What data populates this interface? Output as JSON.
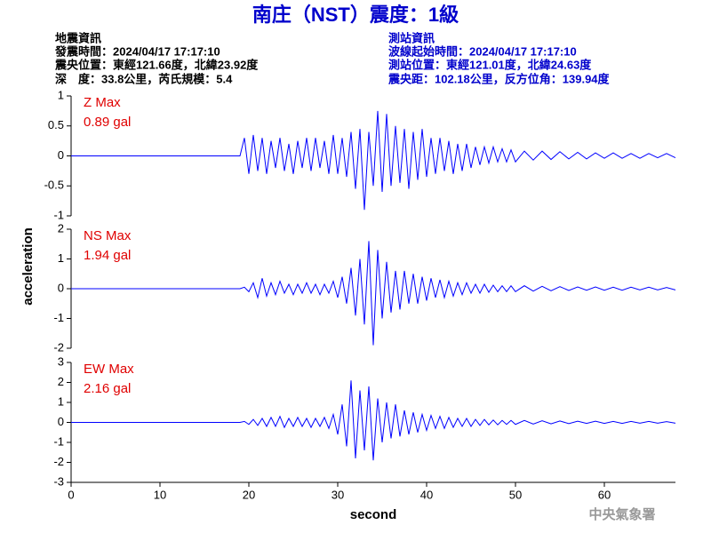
{
  "header": {
    "title": "南庄（NST）震度：1級",
    "left": [
      "地震資訊",
      "發震時間：2024/04/17 17:17:10",
      "震央位置：東經121.66度，北緯23.92度",
      "深　度：33.8公里，芮氏規模：5.4"
    ],
    "right": [
      "測站資訊",
      "波線起始時間：2024/04/17 17:17:10",
      "測站位置：東經121.01度，北緯24.63度",
      "震央距：102.18公里，反方位角：139.94度"
    ]
  },
  "footer": "中央氣象署",
  "chart_data": {
    "type": "line",
    "x_label": "second",
    "y_label": "acceleration",
    "xlim": [
      0,
      68
    ],
    "xticks": [
      0,
      10,
      20,
      30,
      40,
      50,
      60
    ],
    "x": [
      0,
      19,
      19.5,
      20,
      20.5,
      21,
      21.5,
      22,
      22.5,
      23,
      23.5,
      24,
      24.5,
      25,
      25.5,
      26,
      26.5,
      27,
      27.5,
      28,
      28.5,
      29,
      29.5,
      30,
      30.5,
      31,
      31.5,
      32,
      32.5,
      33,
      33.5,
      34,
      34.5,
      35,
      35.5,
      36,
      36.5,
      37,
      37.5,
      38,
      38.5,
      39,
      39.5,
      40,
      40.5,
      41,
      41.5,
      42,
      42.5,
      43,
      43.5,
      44,
      44.5,
      45,
      45.5,
      46,
      46.5,
      47,
      47.5,
      48,
      48.5,
      49,
      49.5,
      50,
      51,
      52,
      53,
      54,
      55,
      56,
      57,
      58,
      59,
      60,
      61,
      62,
      63,
      64,
      65,
      66,
      67,
      68
    ],
    "series": [
      {
        "name": "Z Max",
        "max_label": "0.89 gal",
        "color": "#0000ff",
        "ylim": [
          -1,
          1
        ],
        "yticks": [
          -1,
          -0.5,
          0,
          0.5,
          1
        ],
        "values": [
          0,
          0,
          0.3,
          -0.3,
          0.35,
          -0.25,
          0.3,
          -0.3,
          0.25,
          -0.2,
          0.3,
          -0.25,
          0.2,
          -0.3,
          0.25,
          -0.2,
          0.3,
          -0.25,
          0.3,
          -0.2,
          0.25,
          -0.3,
          0.35,
          -0.3,
          0.3,
          -0.35,
          0.4,
          -0.55,
          0.45,
          -0.9,
          0.4,
          -0.5,
          0.75,
          -0.6,
          0.7,
          -0.5,
          0.5,
          -0.45,
          0.45,
          -0.55,
          0.4,
          -0.4,
          0.45,
          -0.35,
          0.3,
          -0.3,
          0.3,
          -0.25,
          0.25,
          -0.3,
          0.2,
          -0.25,
          0.2,
          -0.2,
          0.15,
          -0.15,
          0.15,
          -0.12,
          0.15,
          -0.1,
          0.12,
          -0.1,
          0.1,
          -0.1,
          0.08,
          -0.07,
          0.08,
          -0.06,
          0.07,
          -0.05,
          0.06,
          -0.05,
          0.05,
          -0.04,
          0.05,
          -0.04,
          0.04,
          -0.04,
          0.04,
          -0.03,
          0.04,
          -0.03
        ]
      },
      {
        "name": "NS Max",
        "max_label": "1.94 gal",
        "color": "#0000ff",
        "ylim": [
          -2,
          2
        ],
        "yticks": [
          -2,
          -1,
          0,
          1,
          2
        ],
        "values": [
          0,
          0,
          0.05,
          -0.1,
          0.2,
          -0.3,
          0.35,
          -0.25,
          0.2,
          -0.2,
          0.25,
          -0.15,
          0.15,
          -0.2,
          0.15,
          -0.15,
          0.2,
          -0.15,
          0.15,
          -0.2,
          0.15,
          -0.15,
          0.25,
          -0.3,
          0.4,
          -0.5,
          0.7,
          -0.9,
          1.0,
          -1.2,
          1.6,
          -1.9,
          1.3,
          -1.0,
          0.9,
          -0.8,
          0.6,
          -0.7,
          0.6,
          -0.5,
          0.5,
          -0.5,
          0.4,
          -0.4,
          0.35,
          -0.3,
          0.3,
          -0.3,
          0.25,
          -0.25,
          0.2,
          -0.2,
          0.2,
          -0.15,
          0.15,
          -0.15,
          0.15,
          -0.12,
          0.12,
          -0.1,
          0.1,
          -0.1,
          0.1,
          -0.1,
          0.1,
          -0.08,
          0.08,
          -0.07,
          0.07,
          -0.06,
          0.06,
          -0.05,
          0.06,
          -0.05,
          0.05,
          -0.05,
          0.05,
          -0.04,
          0.05,
          -0.04,
          0.04,
          -0.04
        ]
      },
      {
        "name": "EW Max",
        "max_label": "2.16 gal",
        "color": "#0000ff",
        "ylim": [
          -3,
          3
        ],
        "yticks": [
          -3,
          -2,
          -1,
          0,
          1,
          2,
          3
        ],
        "values": [
          0,
          0,
          0.05,
          -0.1,
          0.15,
          -0.15,
          0.2,
          -0.2,
          0.25,
          -0.2,
          0.3,
          -0.25,
          0.2,
          -0.2,
          0.25,
          -0.2,
          0.2,
          -0.25,
          0.2,
          -0.2,
          0.25,
          -0.3,
          0.4,
          -0.6,
          0.9,
          -1.2,
          2.1,
          -1.8,
          1.6,
          -1.4,
          1.8,
          -1.9,
          1.2,
          -1.0,
          1.0,
          -0.8,
          0.9,
          -0.7,
          0.6,
          -0.6,
          0.5,
          -0.5,
          0.4,
          -0.4,
          0.35,
          -0.3,
          0.3,
          -0.3,
          0.25,
          -0.25,
          0.2,
          -0.2,
          0.2,
          -0.2,
          0.15,
          -0.15,
          0.15,
          -0.12,
          0.12,
          -0.12,
          0.1,
          -0.1,
          0.1,
          -0.1,
          0.1,
          -0.08,
          0.08,
          -0.07,
          0.07,
          -0.06,
          0.06,
          -0.05,
          0.06,
          -0.05,
          0.05,
          -0.05,
          0.05,
          -0.04,
          0.05,
          -0.04,
          0.04,
          -0.04
        ]
      }
    ]
  }
}
